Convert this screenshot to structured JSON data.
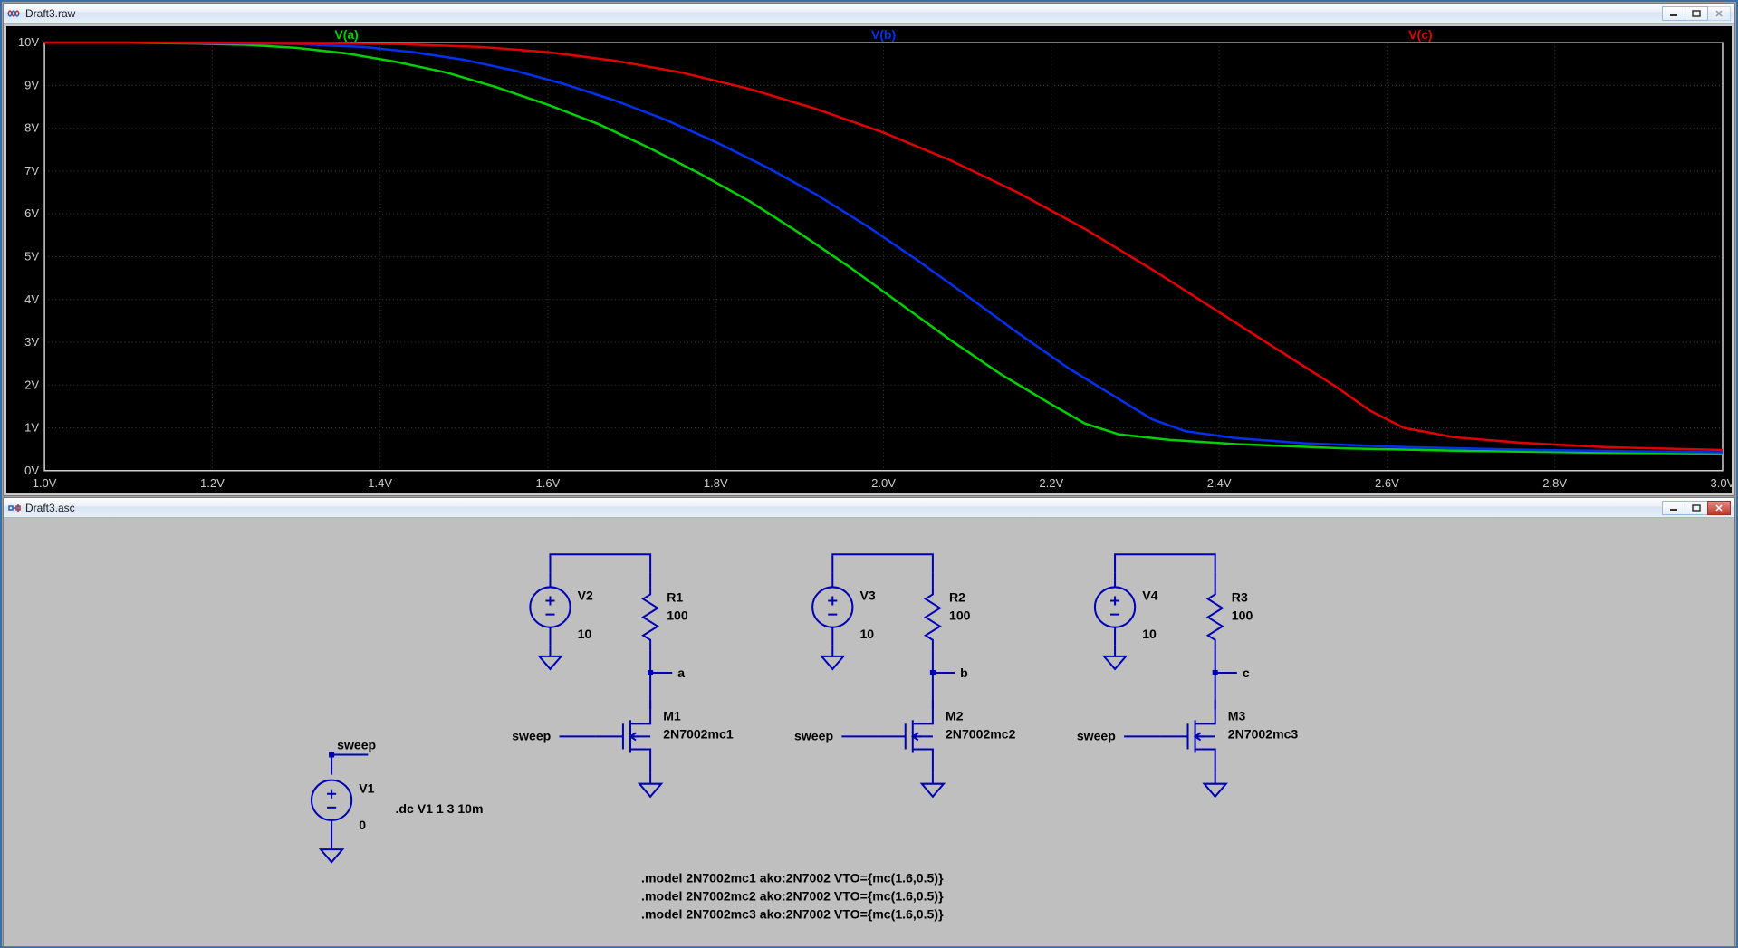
{
  "plot_window": {
    "title": "Draft3.raw",
    "icon": "waveform-icon",
    "chart": {
      "type": "line",
      "background": "#000000",
      "grid_color": "#3a3a3a",
      "axis_color": "#d0d0d0",
      "tick_font_size": 13,
      "tick_font_color": "#cccccc",
      "x_axis": {
        "min": 1.0,
        "max": 3.0,
        "tick_step": 0.2,
        "labels": [
          "1.0V",
          "1.2V",
          "1.4V",
          "1.6V",
          "1.8V",
          "2.0V",
          "2.2V",
          "2.4V",
          "2.6V",
          "2.8V",
          "3.0V"
        ]
      },
      "y_axis": {
        "min": 0,
        "max": 10,
        "tick_step": 1,
        "labels": [
          "0V",
          "1V",
          "2V",
          "3V",
          "4V",
          "5V",
          "6V",
          "7V",
          "8V",
          "9V",
          "10V"
        ]
      },
      "series": [
        {
          "name": "V(a)",
          "label_x_frac": 0.18,
          "color": "#00d000",
          "width": 2.5,
          "points": [
            [
              1.0,
              10.0
            ],
            [
              1.1,
              10.0
            ],
            [
              1.18,
              9.98
            ],
            [
              1.24,
              9.95
            ],
            [
              1.3,
              9.88
            ],
            [
              1.36,
              9.75
            ],
            [
              1.42,
              9.55
            ],
            [
              1.48,
              9.3
            ],
            [
              1.54,
              8.95
            ],
            [
              1.6,
              8.55
            ],
            [
              1.66,
              8.1
            ],
            [
              1.72,
              7.55
            ],
            [
              1.78,
              6.95
            ],
            [
              1.84,
              6.3
            ],
            [
              1.9,
              5.55
            ],
            [
              1.96,
              4.75
            ],
            [
              2.02,
              3.9
            ],
            [
              2.08,
              3.05
            ],
            [
              2.14,
              2.25
            ],
            [
              2.2,
              1.55
            ],
            [
              2.24,
              1.1
            ],
            [
              2.28,
              0.85
            ],
            [
              2.34,
              0.72
            ],
            [
              2.42,
              0.62
            ],
            [
              2.55,
              0.52
            ],
            [
              2.7,
              0.46
            ],
            [
              2.85,
              0.42
            ],
            [
              3.0,
              0.4
            ]
          ]
        },
        {
          "name": "V(b)",
          "label_x_frac": 0.5,
          "color": "#0030f0",
          "width": 2.5,
          "points": [
            [
              1.0,
              10.0
            ],
            [
              1.14,
              10.0
            ],
            [
              1.22,
              9.99
            ],
            [
              1.3,
              9.97
            ],
            [
              1.38,
              9.9
            ],
            [
              1.44,
              9.78
            ],
            [
              1.5,
              9.6
            ],
            [
              1.56,
              9.35
            ],
            [
              1.62,
              9.03
            ],
            [
              1.68,
              8.65
            ],
            [
              1.74,
              8.2
            ],
            [
              1.8,
              7.68
            ],
            [
              1.86,
              7.1
            ],
            [
              1.92,
              6.45
            ],
            [
              1.98,
              5.72
            ],
            [
              2.04,
              4.92
            ],
            [
              2.1,
              4.08
            ],
            [
              2.16,
              3.22
            ],
            [
              2.22,
              2.4
            ],
            [
              2.28,
              1.68
            ],
            [
              2.32,
              1.2
            ],
            [
              2.36,
              0.92
            ],
            [
              2.42,
              0.76
            ],
            [
              2.5,
              0.64
            ],
            [
              2.62,
              0.55
            ],
            [
              2.78,
              0.48
            ],
            [
              2.9,
              0.45
            ],
            [
              3.0,
              0.43
            ]
          ]
        },
        {
          "name": "V(c)",
          "label_x_frac": 0.82,
          "color": "#e00000",
          "width": 2.5,
          "points": [
            [
              1.0,
              10.0
            ],
            [
              1.2,
              10.0
            ],
            [
              1.32,
              9.99
            ],
            [
              1.42,
              9.97
            ],
            [
              1.52,
              9.9
            ],
            [
              1.6,
              9.78
            ],
            [
              1.68,
              9.58
            ],
            [
              1.76,
              9.3
            ],
            [
              1.84,
              8.92
            ],
            [
              1.92,
              8.45
            ],
            [
              2.0,
              7.9
            ],
            [
              2.08,
              7.25
            ],
            [
              2.16,
              6.5
            ],
            [
              2.24,
              5.65
            ],
            [
              2.32,
              4.7
            ],
            [
              2.4,
              3.7
            ],
            [
              2.48,
              2.7
            ],
            [
              2.54,
              1.95
            ],
            [
              2.58,
              1.4
            ],
            [
              2.62,
              1.0
            ],
            [
              2.68,
              0.78
            ],
            [
              2.76,
              0.65
            ],
            [
              2.86,
              0.55
            ],
            [
              3.0,
              0.48
            ]
          ]
        }
      ]
    }
  },
  "schematic_window": {
    "title": "Draft3.asc",
    "icon": "schematic-icon",
    "background": "#bfbfbf",
    "wire_color": "#0000b4",
    "text_color": "#000000",
    "sweep_source": {
      "name": "V1",
      "value": "0",
      "net_label": "sweep",
      "directive": ".dc V1 1 3 10m"
    },
    "stages": [
      {
        "vsrc": "V2",
        "vsrc_val": "10",
        "res": "R1",
        "res_val": "100",
        "node": "a",
        "mos": "M1",
        "model": "2N7002mc1",
        "in": "sweep"
      },
      {
        "vsrc": "V3",
        "vsrc_val": "10",
        "res": "R2",
        "res_val": "100",
        "node": "b",
        "mos": "M2",
        "model": "2N7002mc2",
        "in": "sweep"
      },
      {
        "vsrc": "V4",
        "vsrc_val": "10",
        "res": "R3",
        "res_val": "100",
        "node": "c",
        "mos": "M3",
        "model": "2N7002mc3",
        "in": "sweep"
      }
    ],
    "directives": [
      ".model 2N7002mc1 ako:2N7002 VTO={mc(1.6,0.5)}",
      ".model 2N7002mc2 ako:2N7002 VTO={mc(1.6,0.5)}",
      ".model 2N7002mc3 ako:2N7002 VTO={mc(1.6,0.5)}"
    ]
  }
}
